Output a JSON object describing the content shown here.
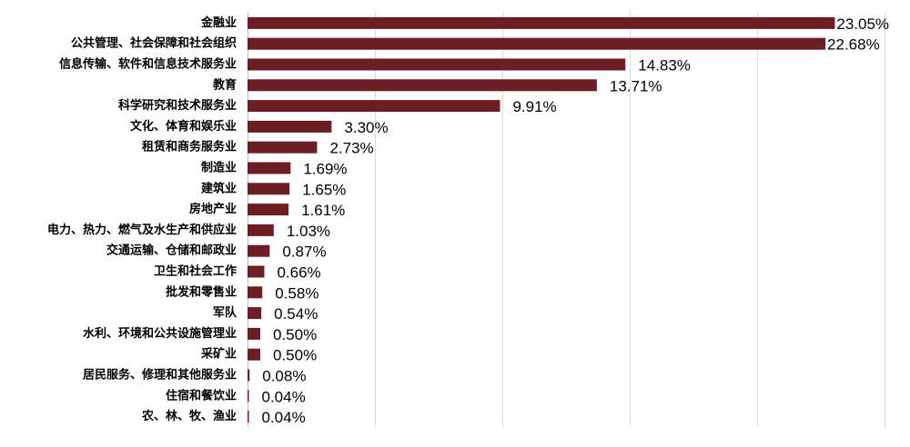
{
  "chart_data": {
    "type": "bar",
    "orientation": "horizontal",
    "categories": [
      "金融业",
      "公共管理、社会保障和社会组织",
      "信息传输、软件和信息技术服务业",
      "教育",
      "科学研究和技术服务业",
      "文化、体育和娱乐业",
      "租赁和商务服务业",
      "制造业",
      "建筑业",
      "房地产业",
      "电力、热力、燃气及水生产和供应业",
      "交通运输、仓储和邮政业",
      "卫生和社会工作",
      "批发和零售业",
      "军队",
      "水利、环境和公共设施管理业",
      "采矿业",
      "居民服务、修理和其他服务业",
      "住宿和餐饮业",
      "农、林、牧、渔业"
    ],
    "values": [
      23.05,
      22.68,
      14.83,
      13.71,
      9.91,
      3.3,
      2.73,
      1.69,
      1.65,
      1.61,
      1.03,
      0.87,
      0.66,
      0.58,
      0.54,
      0.5,
      0.5,
      0.08,
      0.04,
      0.04
    ],
    "value_labels": [
      "23.05%",
      "22.68%",
      "14.83%",
      "13.71%",
      "9.91%",
      "3.30%",
      "2.73%",
      "1.69%",
      "1.65%",
      "1.61%",
      "1.03%",
      "0.87%",
      "0.66%",
      "0.58%",
      "0.54%",
      "0.50%",
      "0.50%",
      "0.08%",
      "0.04%",
      "0.04%"
    ],
    "xlim": [
      0,
      25
    ],
    "grid": true,
    "legend": "none",
    "bar_color": "#6b1f24"
  }
}
